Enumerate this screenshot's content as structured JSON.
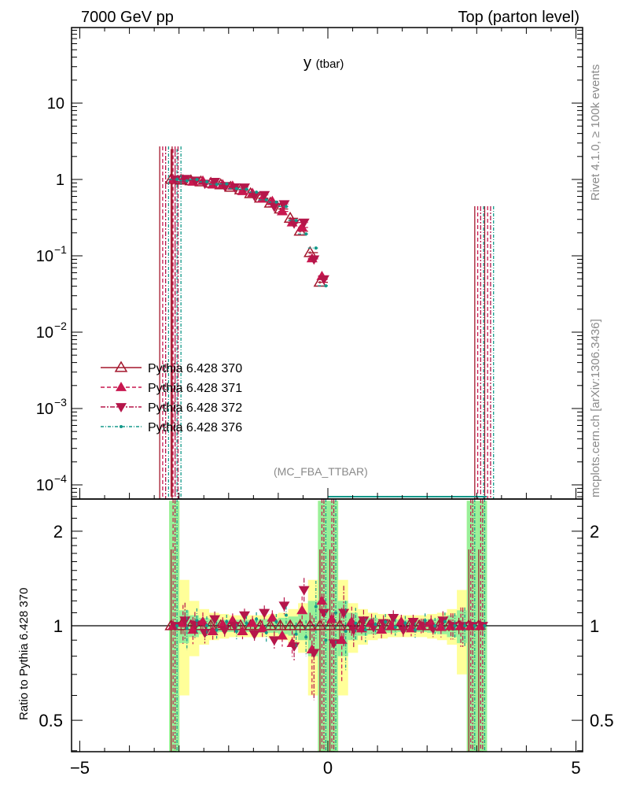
{
  "header": {
    "left": "7000 GeV pp",
    "right": "Top (parton level)"
  },
  "side": {
    "rivet": "Rivet 4.1.0, ≥ 100k events",
    "mcplots": "mcplots.cern.ch [arXiv:1306.3436]"
  },
  "analysis": "(MC_FBA_TTBAR)",
  "colors": {
    "s370": "#a3162c",
    "s371": "#c8174f",
    "s372": "#b5164a",
    "s376": "#13998a",
    "green": "#99f099",
    "yellow": "#ffff99"
  },
  "chart_data": {
    "type": "scatter",
    "title": "y",
    "title_sub": "(tbar)",
    "xlim": [
      -5.2,
      5.2
    ],
    "ylim": [
      0.0001,
      100
    ],
    "yscale": "log",
    "x_ticks": [
      "−5",
      "0",
      "5"
    ],
    "y_ticks": [
      {
        "base": "10",
        "exp": ""
      },
      {
        "base": "1",
        "exp": ""
      },
      {
        "base": "10",
        "exp": "−1"
      },
      {
        "base": "10",
        "exp": "−2"
      },
      {
        "base": "10",
        "exp": "−3"
      },
      {
        "base": "10",
        "exp": "−4"
      }
    ],
    "x": [
      -3.1,
      -2.9,
      -2.7,
      -2.5,
      -2.3,
      -2.1,
      -1.9,
      -1.7,
      -1.5,
      -1.3,
      -1.1,
      -0.9,
      -0.7,
      -0.5,
      -0.3,
      -0.1,
      0.1,
      0.3,
      0.5,
      0.7,
      0.9,
      1.1,
      1.3,
      1.5,
      1.7,
      1.9,
      2.1,
      2.3,
      2.5,
      2.7,
      2.9,
      3.1
    ],
    "reference": [
      1.0,
      0.98,
      0.96,
      0.93,
      0.89,
      0.85,
      0.79,
      0.73,
      0.65,
      0.57,
      0.49,
      0.41,
      0.31,
      0.21,
      0.11,
      0.045,
      0,
      0,
      0,
      0,
      0,
      0,
      0,
      0,
      0,
      0,
      0,
      0,
      0,
      0,
      0,
      0
    ],
    "series": [
      {
        "name": "Pythia 6.428 370",
        "ratio": [
          1,
          1,
          1,
          1,
          1,
          1,
          1,
          1,
          1,
          1,
          1,
          1,
          1,
          1,
          1,
          1,
          1,
          1,
          1,
          1,
          1,
          1,
          1,
          1,
          1,
          1,
          1,
          1,
          1,
          1,
          1,
          1
        ]
      },
      {
        "name": "Pythia 6.428 371",
        "ratio": [
          1,
          1.02,
          0.97,
          1.03,
          0.96,
          1.01,
          1.04,
          0.96,
          1.02,
          0.98,
          1.06,
          0.93,
          0.88,
          1.12,
          0.84,
          1.2,
          1.05,
          0.9,
          1.03,
          0.98,
          1.02,
          0.97,
          1.0,
          1.03,
          0.98,
          1.0,
          1.02,
          0.99,
          1,
          1,
          1,
          1
        ]
      },
      {
        "name": "Pythia 6.428 372",
        "ratio": [
          1,
          1.04,
          1.01,
          0.95,
          1.05,
          0.97,
          1.0,
          1.08,
          0.94,
          1.1,
          0.9,
          1.16,
          0.86,
          1.3,
          0.82,
          1.1,
          0.88,
          1.1,
          0.97,
          1.04,
          0.99,
          1.02,
          1.06,
          0.97,
          1.03,
          1.0,
          0.98,
          1.04,
          1,
          1,
          1,
          1
        ]
      },
      {
        "name": "Pythia 6.428 376",
        "ratio": [
          1,
          0.98,
          1.04,
          1.0,
          0.97,
          1.03,
          0.96,
          1.02,
          1.05,
          0.95,
          1.03,
          1.08,
          0.94,
          0.92,
          1.15,
          0.9,
          1.1,
          0.96,
          1.02,
          0.97,
          1.01,
          1.03,
          0.99,
          1.02,
          0.97,
          1.04,
          1.0,
          1.03,
          1,
          1,
          1,
          1
        ]
      }
    ],
    "band_green": [
      1.5,
      0.12,
      0.08,
      0.06,
      0.05,
      0.045,
      0.045,
      0.045,
      0.045,
      0.05,
      0.05,
      0.06,
      0.07,
      0.1,
      0.2,
      1.5,
      1.5,
      0.2,
      0.1,
      0.07,
      0.06,
      0.05,
      0.05,
      0.045,
      0.045,
      0.045,
      0.05,
      0.06,
      0.08,
      0.12,
      1.5,
      1.5
    ],
    "band_yellow": [
      1.5,
      0.4,
      0.2,
      0.13,
      0.1,
      0.09,
      0.08,
      0.08,
      0.08,
      0.08,
      0.09,
      0.1,
      0.13,
      0.18,
      0.4,
      1.5,
      1.5,
      0.4,
      0.18,
      0.13,
      0.1,
      0.09,
      0.08,
      0.08,
      0.08,
      0.08,
      0.09,
      0.1,
      0.13,
      0.3,
      1.5,
      1.5
    ],
    "ratio_ylabel": "Ratio to Pythia 6.428 370",
    "ratio_ylim": [
      0.4,
      2.5
    ],
    "ratio_ticks": [
      "2",
      "1",
      "0.5"
    ],
    "legend_placement": "lower-left"
  }
}
